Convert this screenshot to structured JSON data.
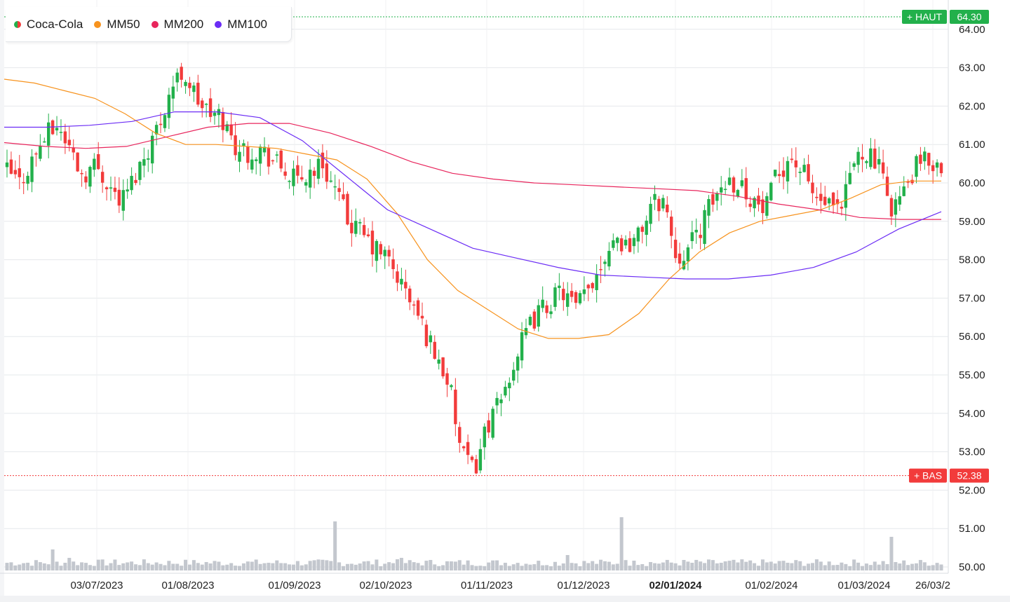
{
  "legend": [
    {
      "label": "Coca-Cola",
      "color": "split"
    },
    {
      "label": "MM50",
      "color": "#f7931e"
    },
    {
      "label": "MM200",
      "color": "#e8255c"
    },
    {
      "label": "MM100",
      "color": "#6b2cf5"
    }
  ],
  "high_marker": {
    "label": "+ HAUT",
    "value": "64.30",
    "color": "#22b04b"
  },
  "low_marker": {
    "label": "+ BAS",
    "value": "52.38",
    "color": "#f23b3b"
  },
  "chart_data": {
    "type": "candlestick",
    "y_ticks": [
      "64.00",
      "63.00",
      "62.00",
      "61.00",
      "60.00",
      "59.00",
      "58.00",
      "57.00",
      "56.00",
      "55.00",
      "54.00",
      "53.00",
      "52.00",
      "51.00",
      "50.00"
    ],
    "ylim": [
      50,
      64.3
    ],
    "x_ticks": [
      {
        "label": "03/07/2023",
        "bold": false
      },
      {
        "label": "01/08/2023",
        "bold": false
      },
      {
        "label": "01/09/2023",
        "bold": false
      },
      {
        "label": "02/10/2023",
        "bold": false
      },
      {
        "label": "01/11/2023",
        "bold": false
      },
      {
        "label": "01/12/2023",
        "bold": false
      },
      {
        "label": "02/01/2024",
        "bold": true
      },
      {
        "label": "01/02/2024",
        "bold": false
      },
      {
        "label": "01/03/2024",
        "bold": false
      },
      {
        "label": "26/03/2",
        "bold": false
      }
    ],
    "grid": true,
    "series": [
      {
        "name": "MM50",
        "color": "#f7931e",
        "values": [
          62.7,
          62.6,
          62.4,
          62.2,
          61.8,
          61.3,
          61.0,
          61.0,
          60.95,
          60.9,
          60.75,
          60.6,
          60.1,
          59.2,
          58.0,
          57.2,
          56.7,
          56.2,
          55.95,
          55.95,
          56.05,
          56.6,
          57.5,
          58.2,
          58.7,
          59.0,
          59.15,
          59.3,
          59.6,
          59.95,
          60.05,
          60.05
        ]
      },
      {
        "name": "MM200",
        "color": "#e8255c",
        "values": [
          61.05,
          60.95,
          60.9,
          60.95,
          61.2,
          61.45,
          61.55,
          61.55,
          61.3,
          60.95,
          60.55,
          60.25,
          60.1,
          60.0,
          59.95,
          59.9,
          59.85,
          59.8,
          59.65,
          59.45,
          59.3,
          59.1,
          59.05,
          59.05
        ]
      },
      {
        "name": "MM100",
        "color": "#6b2cf5",
        "values": [
          61.45,
          61.45,
          61.5,
          61.6,
          61.85,
          61.85,
          61.7,
          61.1,
          60.2,
          59.3,
          58.8,
          58.3,
          58.05,
          57.8,
          57.6,
          57.55,
          57.5,
          57.5,
          57.6,
          57.8,
          58.2,
          58.8,
          59.25
        ]
      }
    ],
    "ohlc_daily_close_sample": [
      60.3,
      60.0,
      60.6,
      61.2,
      61.5,
      60.9,
      60.2,
      60.5,
      60.0,
      59.5,
      60.1,
      60.8,
      61.5,
      62.5,
      62.9,
      62.2,
      61.8,
      61.7,
      61.0,
      60.8,
      60.9,
      60.6,
      60.3,
      60.0,
      60.3,
      60.5,
      59.8,
      59.0,
      58.7,
      58.3,
      58.1,
      57.5,
      56.9,
      56.2,
      55.5,
      54.8,
      52.9,
      52.5,
      53.7,
      54.2,
      55.2,
      56.0,
      56.6,
      56.9,
      57.2,
      56.7,
      57.2,
      57.9,
      58.6,
      58.4,
      58.6,
      59.4,
      59.6,
      58.1,
      58.3,
      58.9,
      59.6,
      60.1,
      60.0,
      59.6,
      59.2,
      60.2,
      60.7,
      60.3,
      59.6,
      59.4,
      59.1,
      60.5,
      60.9,
      60.4,
      59.4,
      59.7,
      60.4,
      60.6,
      60.4
    ]
  }
}
